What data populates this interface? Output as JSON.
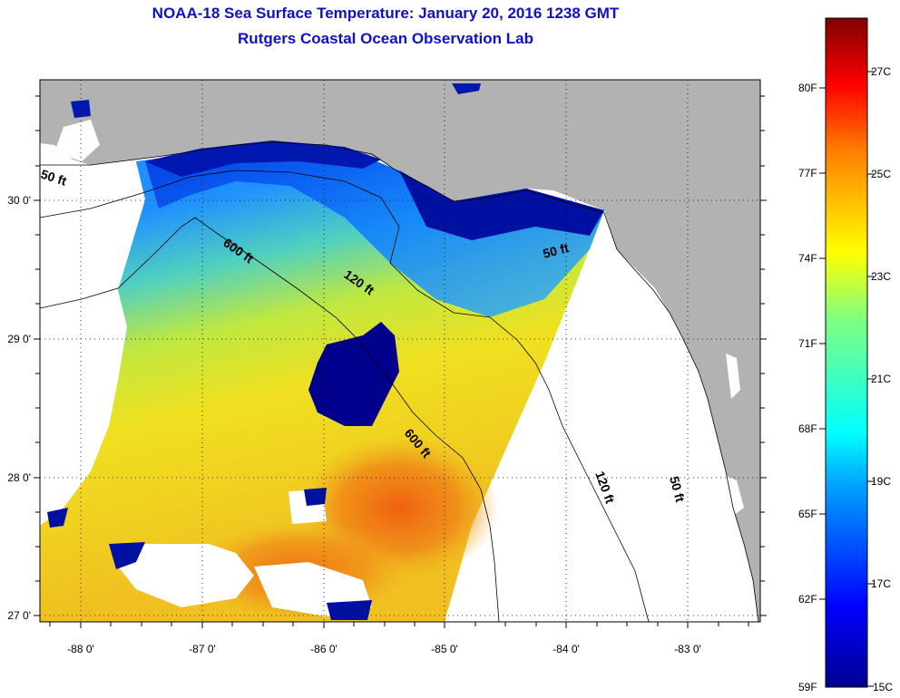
{
  "header": {
    "title": "NOAA-18 Sea Surface Temperature:  January 20, 2016 1238 GMT",
    "subtitle": "Rutgers Coastal Ocean Observation Lab"
  },
  "axes": {
    "lon_labels": [
      "-88 0'",
      "-87 0'",
      "-86 0'",
      "-85 0'",
      "-84 0'",
      "-83 0'"
    ],
    "lat_labels": [
      "30 0'",
      "29 0'",
      "28 0'",
      "27 0'"
    ]
  },
  "contours": {
    "c50_left": "50 ft",
    "c600_upper": "600 ft",
    "c120_mid": "120 ft",
    "c50_right": "50 ft",
    "c600_lower": "600 ft",
    "c120_lower": "120 ft",
    "c50_lower": "50 ft"
  },
  "colorbar": {
    "fahrenheit": [
      "80F",
      "77F",
      "74F",
      "71F",
      "68F",
      "65F",
      "62F",
      "59F"
    ],
    "celsius": [
      "27C",
      "25C",
      "23C",
      "21C",
      "19C",
      "17C",
      "15C"
    ]
  },
  "colors": {
    "land": "#b2b2b2",
    "title": "#1010c8",
    "cold": "#00008c",
    "warm": "#e8640a"
  }
}
